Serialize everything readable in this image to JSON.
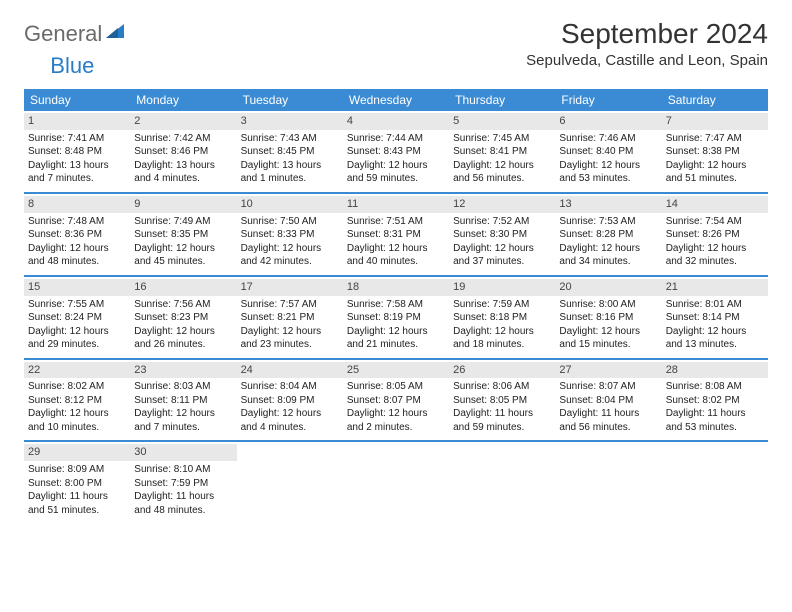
{
  "logo": {
    "part1": "General",
    "part2": "Blue"
  },
  "title": "September 2024",
  "subtitle": "Sepulveda, Castille and Leon, Spain",
  "colors": {
    "header_bg": "#3b8bd4",
    "header_text": "#ffffff",
    "daynum_bg": "#e8e8e8",
    "week_divider": "#3b8bd4",
    "logo_gray": "#6b6b6b",
    "logo_blue": "#2a7cc7"
  },
  "weekdays": [
    "Sunday",
    "Monday",
    "Tuesday",
    "Wednesday",
    "Thursday",
    "Friday",
    "Saturday"
  ],
  "days": [
    {
      "n": "1",
      "sunrise": "7:41 AM",
      "sunset": "8:48 PM",
      "daylight": "13 hours and 7 minutes."
    },
    {
      "n": "2",
      "sunrise": "7:42 AM",
      "sunset": "8:46 PM",
      "daylight": "13 hours and 4 minutes."
    },
    {
      "n": "3",
      "sunrise": "7:43 AM",
      "sunset": "8:45 PM",
      "daylight": "13 hours and 1 minutes."
    },
    {
      "n": "4",
      "sunrise": "7:44 AM",
      "sunset": "8:43 PM",
      "daylight": "12 hours and 59 minutes."
    },
    {
      "n": "5",
      "sunrise": "7:45 AM",
      "sunset": "8:41 PM",
      "daylight": "12 hours and 56 minutes."
    },
    {
      "n": "6",
      "sunrise": "7:46 AM",
      "sunset": "8:40 PM",
      "daylight": "12 hours and 53 minutes."
    },
    {
      "n": "7",
      "sunrise": "7:47 AM",
      "sunset": "8:38 PM",
      "daylight": "12 hours and 51 minutes."
    },
    {
      "n": "8",
      "sunrise": "7:48 AM",
      "sunset": "8:36 PM",
      "daylight": "12 hours and 48 minutes."
    },
    {
      "n": "9",
      "sunrise": "7:49 AM",
      "sunset": "8:35 PM",
      "daylight": "12 hours and 45 minutes."
    },
    {
      "n": "10",
      "sunrise": "7:50 AM",
      "sunset": "8:33 PM",
      "daylight": "12 hours and 42 minutes."
    },
    {
      "n": "11",
      "sunrise": "7:51 AM",
      "sunset": "8:31 PM",
      "daylight": "12 hours and 40 minutes."
    },
    {
      "n": "12",
      "sunrise": "7:52 AM",
      "sunset": "8:30 PM",
      "daylight": "12 hours and 37 minutes."
    },
    {
      "n": "13",
      "sunrise": "7:53 AM",
      "sunset": "8:28 PM",
      "daylight": "12 hours and 34 minutes."
    },
    {
      "n": "14",
      "sunrise": "7:54 AM",
      "sunset": "8:26 PM",
      "daylight": "12 hours and 32 minutes."
    },
    {
      "n": "15",
      "sunrise": "7:55 AM",
      "sunset": "8:24 PM",
      "daylight": "12 hours and 29 minutes."
    },
    {
      "n": "16",
      "sunrise": "7:56 AM",
      "sunset": "8:23 PM",
      "daylight": "12 hours and 26 minutes."
    },
    {
      "n": "17",
      "sunrise": "7:57 AM",
      "sunset": "8:21 PM",
      "daylight": "12 hours and 23 minutes."
    },
    {
      "n": "18",
      "sunrise": "7:58 AM",
      "sunset": "8:19 PM",
      "daylight": "12 hours and 21 minutes."
    },
    {
      "n": "19",
      "sunrise": "7:59 AM",
      "sunset": "8:18 PM",
      "daylight": "12 hours and 18 minutes."
    },
    {
      "n": "20",
      "sunrise": "8:00 AM",
      "sunset": "8:16 PM",
      "daylight": "12 hours and 15 minutes."
    },
    {
      "n": "21",
      "sunrise": "8:01 AM",
      "sunset": "8:14 PM",
      "daylight": "12 hours and 13 minutes."
    },
    {
      "n": "22",
      "sunrise": "8:02 AM",
      "sunset": "8:12 PM",
      "daylight": "12 hours and 10 minutes."
    },
    {
      "n": "23",
      "sunrise": "8:03 AM",
      "sunset": "8:11 PM",
      "daylight": "12 hours and 7 minutes."
    },
    {
      "n": "24",
      "sunrise": "8:04 AM",
      "sunset": "8:09 PM",
      "daylight": "12 hours and 4 minutes."
    },
    {
      "n": "25",
      "sunrise": "8:05 AM",
      "sunset": "8:07 PM",
      "daylight": "12 hours and 2 minutes."
    },
    {
      "n": "26",
      "sunrise": "8:06 AM",
      "sunset": "8:05 PM",
      "daylight": "11 hours and 59 minutes."
    },
    {
      "n": "27",
      "sunrise": "8:07 AM",
      "sunset": "8:04 PM",
      "daylight": "11 hours and 56 minutes."
    },
    {
      "n": "28",
      "sunrise": "8:08 AM",
      "sunset": "8:02 PM",
      "daylight": "11 hours and 53 minutes."
    },
    {
      "n": "29",
      "sunrise": "8:09 AM",
      "sunset": "8:00 PM",
      "daylight": "11 hours and 51 minutes."
    },
    {
      "n": "30",
      "sunrise": "8:10 AM",
      "sunset": "7:59 PM",
      "daylight": "11 hours and 48 minutes."
    }
  ],
  "labels": {
    "sunrise": "Sunrise:",
    "sunset": "Sunset:",
    "daylight": "Daylight:"
  },
  "layout": {
    "first_weekday_offset": 0,
    "trailing_empty": 5
  }
}
